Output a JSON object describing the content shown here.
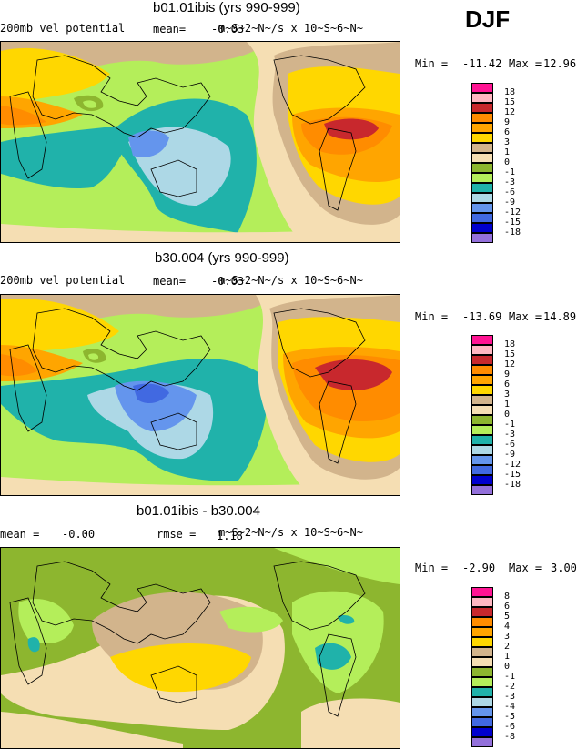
{
  "season": "DJF",
  "units": "m~S~2~N~/s x 10~S~6~N~",
  "panels": [
    {
      "title": "b01.01ibis (yrs 990-999)",
      "field": "200mb vel potential",
      "stat_label": "mean=",
      "stat_value": "-0.03",
      "min_label": "Min =",
      "min": "-11.42",
      "max_label": "Max =",
      "max": "12.96",
      "levels": [
        "18",
        "15",
        "12",
        "9",
        "6",
        "3",
        "1",
        "0",
        "-1",
        "-3",
        "-6",
        "-9",
        "-12",
        "-15",
        "-18"
      ],
      "colors": [
        "#ff1493",
        "#ffb6c1",
        "#c8282d",
        "#ff8c00",
        "#ffa500",
        "#ffd700",
        "#d2b48c",
        "#f5deb3",
        "#8db62f",
        "#b4ee5a",
        "#20b2aa",
        "#add8e6",
        "#6495ed",
        "#4169e1",
        "#0000cd",
        "#9370db"
      ]
    },
    {
      "title": "b30.004 (yrs 990-999)",
      "field": "200mb vel potential",
      "stat_label": "mean=",
      "stat_value": "-0.03",
      "min_label": "Min =",
      "min": "-13.69",
      "max_label": "Max =",
      "max": "14.89",
      "levels": [
        "18",
        "15",
        "12",
        "9",
        "6",
        "3",
        "1",
        "0",
        "-1",
        "-3",
        "-6",
        "-9",
        "-12",
        "-15",
        "-18"
      ],
      "colors": [
        "#ff1493",
        "#ffb6c1",
        "#c8282d",
        "#ff8c00",
        "#ffa500",
        "#ffd700",
        "#d2b48c",
        "#f5deb3",
        "#8db62f",
        "#b4ee5a",
        "#20b2aa",
        "#add8e6",
        "#6495ed",
        "#4169e1",
        "#0000cd",
        "#9370db"
      ]
    },
    {
      "title": "b01.01ibis - b30.004",
      "field": "mean =",
      "field_value": "-0.00",
      "stat_label": "rmse =",
      "stat_value": "1.18",
      "min_label": "Min =",
      "min": "-2.90",
      "max_label": "Max =",
      "max": "3.00",
      "levels": [
        "8",
        "6",
        "5",
        "4",
        "3",
        "2",
        "1",
        "0",
        "-1",
        "-2",
        "-3",
        "-4",
        "-5",
        "-6",
        "-8"
      ],
      "colors": [
        "#ff1493",
        "#ffb6c1",
        "#c8282d",
        "#ff8c00",
        "#ffa500",
        "#ffd700",
        "#d2b48c",
        "#f5deb3",
        "#8db62f",
        "#b4ee5a",
        "#20b2aa",
        "#add8e6",
        "#6495ed",
        "#4169e1",
        "#0000cd",
        "#9370db"
      ]
    }
  ]
}
